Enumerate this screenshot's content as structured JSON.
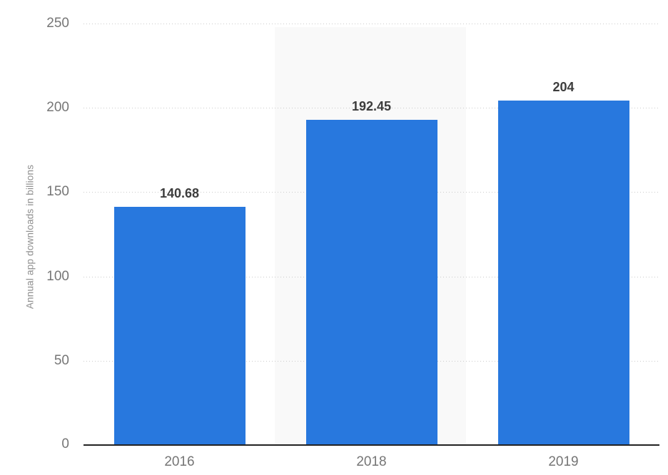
{
  "chart_data": {
    "type": "bar",
    "title": "",
    "xlabel": "",
    "ylabel": "Annual app downloads in billions",
    "categories": [
      "2016",
      "2018",
      "2019"
    ],
    "values": [
      140.68,
      192.45,
      204
    ],
    "value_labels": [
      "140.68",
      "192.45",
      "204"
    ],
    "ylim": [
      0,
      250
    ],
    "yticks": [
      250,
      200,
      150,
      100,
      50,
      0
    ],
    "ytick_labels": [
      "250",
      "200",
      "150",
      "100",
      "50",
      "0"
    ],
    "grid": "horizontal dotted lines at intervals of 50",
    "legend": "none",
    "highlighted_category": "2018",
    "colors": {
      "bar": "#2878DE",
      "value_label": "#3d3d3d",
      "tick_label": "#767676",
      "ylabel_text": "#8e8e8e",
      "gridline": "#cbcbcb",
      "axis_line": "#222222",
      "highlight_band": "#f9f9f9",
      "background": "#ffffff"
    }
  }
}
